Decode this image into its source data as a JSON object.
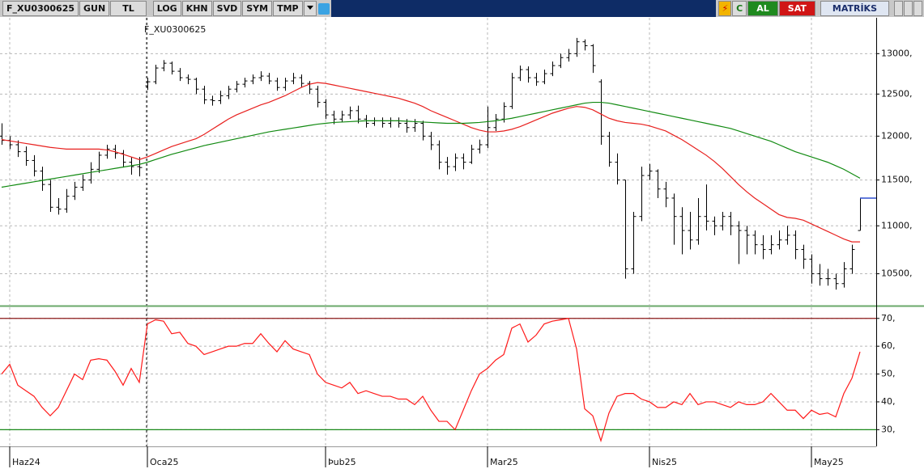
{
  "toolbar": {
    "left": [
      "F_XU0300625",
      "GUN",
      "TL",
      "LOG",
      "KHN",
      "SVD",
      "SYM",
      "TMP"
    ],
    "right": [
      "C",
      "AL",
      "SAT",
      "MATRİKS"
    ]
  },
  "chart_data": [
    {
      "type": "ohlc",
      "log": true,
      "grid": true,
      "ylim": [
        10180,
        13460
      ],
      "yticks": [
        {
          "value": 10500,
          "label": "10500,"
        },
        {
          "value": 11000,
          "label": "11000,"
        },
        {
          "value": 11500,
          "label": "11500,"
        },
        {
          "value": 12000,
          "label": "12000,"
        },
        {
          "value": 12500,
          "label": "12500,"
        },
        {
          "value": 13000,
          "label": "13000,"
        }
      ],
      "last_price_color": "#3050d0",
      "series": [
        {
          "name": "F_XU0300625",
          "color": "#000000",
          "open": [
            12000,
            11950,
            11900,
            11820,
            11720,
            11600,
            11450,
            11200,
            11180,
            11320,
            11420,
            11500,
            11620,
            11780,
            11850,
            11800,
            11700,
            11650,
            12600,
            12650,
            12820,
            12880,
            12780,
            12700,
            12680,
            12560,
            12430,
            12420,
            12480,
            12560,
            12620,
            12660,
            12700,
            12720,
            12660,
            12580,
            12660,
            12700,
            12630,
            12560,
            12400,
            12250,
            12200,
            12250,
            12300,
            12200,
            12150,
            12180,
            12150,
            12180,
            12150,
            12100,
            12150,
            12000,
            11900,
            11700,
            11650,
            11750,
            11700,
            11850,
            11900,
            12100,
            12200,
            12350,
            12700,
            12800,
            12700,
            12650,
            12750,
            12850,
            12950,
            13000,
            13150,
            13100,
            12650,
            12000,
            11700,
            11500,
            10550,
            11100,
            11550,
            11600,
            11400,
            11300,
            11100,
            10950,
            10850,
            11100,
            11050,
            11000,
            11100,
            11000,
            10950,
            10900,
            10800,
            10750,
            10800,
            10850,
            10900,
            10750,
            10650,
            10500,
            10450,
            10450,
            10400,
            10550,
            10950
          ],
          "high": [
            12150,
            12000,
            11950,
            11880,
            11780,
            11650,
            11500,
            11300,
            11400,
            11480,
            11560,
            11700,
            11820,
            11900,
            11900,
            11840,
            11760,
            11760,
            12700,
            12860,
            12920,
            12900,
            12820,
            12740,
            12700,
            12600,
            12480,
            12540,
            12600,
            12660,
            12700,
            12740,
            12780,
            12760,
            12700,
            12700,
            12760,
            12740,
            12660,
            12600,
            12440,
            12300,
            12300,
            12350,
            12360,
            12250,
            12220,
            12220,
            12220,
            12220,
            12200,
            12200,
            12180,
            12050,
            11950,
            11760,
            11800,
            11800,
            11900,
            11960,
            12350,
            12260,
            12400,
            12760,
            12850,
            12840,
            12760,
            12800,
            12900,
            13000,
            13060,
            13200,
            13180,
            13120,
            12680,
            12050,
            11800,
            11500,
            11150,
            11650,
            11680,
            11620,
            11480,
            11350,
            11200,
            11150,
            11300,
            11450,
            11100,
            11150,
            11150,
            11050,
            11000,
            10950,
            10900,
            10900,
            10950,
            11000,
            10950,
            10800,
            10700,
            10600,
            10550,
            10500,
            10620,
            10800,
            11300
          ],
          "low": [
            11900,
            11850,
            11760,
            11660,
            11540,
            11380,
            11150,
            11120,
            11140,
            11280,
            11380,
            11460,
            11580,
            11740,
            11740,
            11640,
            11560,
            11540,
            12550,
            12620,
            12780,
            12740,
            12660,
            12620,
            12500,
            12380,
            12360,
            12380,
            12440,
            12520,
            12580,
            12620,
            12660,
            12620,
            12540,
            12540,
            12620,
            12580,
            12500,
            12340,
            12200,
            12140,
            12160,
            12200,
            12150,
            12100,
            12120,
            12100,
            12100,
            12100,
            12040,
            12050,
            11950,
            11840,
            11620,
            11560,
            11600,
            11620,
            11680,
            11800,
            11860,
            12060,
            12160,
            12320,
            12660,
            12640,
            12600,
            12620,
            12720,
            12820,
            12900,
            12960,
            13040,
            12760,
            11900,
            11650,
            11450,
            10450,
            10500,
            11050,
            11500,
            11300,
            11200,
            10800,
            10700,
            10750,
            10800,
            10950,
            10900,
            10950,
            10900,
            10600,
            10700,
            10700,
            10650,
            10700,
            10750,
            10800,
            10650,
            10550,
            10400,
            10380,
            10380,
            10340,
            10360,
            10500,
            10950
          ],
          "close": [
            11950,
            11900,
            11820,
            11720,
            11600,
            11450,
            11200,
            11180,
            11320,
            11420,
            11500,
            11620,
            11780,
            11850,
            11800,
            11700,
            11650,
            11640,
            12650,
            12820,
            12880,
            12780,
            12700,
            12680,
            12560,
            12430,
            12420,
            12480,
            12560,
            12620,
            12660,
            12700,
            12720,
            12660,
            12580,
            12660,
            12700,
            12630,
            12560,
            12400,
            12250,
            12200,
            12250,
            12300,
            12200,
            12150,
            12180,
            12150,
            12180,
            12150,
            12100,
            12150,
            12000,
            11900,
            11700,
            11650,
            11750,
            11700,
            11850,
            11900,
            12100,
            12200,
            12350,
            12700,
            12800,
            12700,
            12650,
            12750,
            12850,
            12950,
            13000,
            13150,
            13100,
            12850,
            12000,
            11700,
            11500,
            10550,
            11100,
            11550,
            11600,
            11400,
            11300,
            11100,
            10950,
            10850,
            11100,
            11050,
            11000,
            11100,
            11000,
            10950,
            10900,
            10800,
            10750,
            10800,
            10850,
            10900,
            10750,
            10650,
            10500,
            10450,
            10450,
            10400,
            10550,
            10750,
            11300
          ]
        }
      ],
      "overlays": [
        {
          "type": "line",
          "color": "#e8201e",
          "values": [
            11960,
            11945,
            11930,
            11915,
            11900,
            11885,
            11870,
            11860,
            11850,
            11850,
            11850,
            11850,
            11850,
            11840,
            11820,
            11790,
            11760,
            11730,
            11760,
            11800,
            11840,
            11880,
            11910,
            11940,
            11970,
            12020,
            12080,
            12140,
            12200,
            12250,
            12290,
            12330,
            12370,
            12400,
            12440,
            12480,
            12530,
            12580,
            12620,
            12640,
            12630,
            12610,
            12590,
            12570,
            12550,
            12530,
            12510,
            12490,
            12470,
            12450,
            12420,
            12390,
            12350,
            12300,
            12260,
            12220,
            12180,
            12140,
            12100,
            12070,
            12050,
            12050,
            12060,
            12080,
            12110,
            12150,
            12190,
            12230,
            12270,
            12300,
            12330,
            12350,
            12340,
            12310,
            12260,
            12210,
            12180,
            12160,
            12150,
            12140,
            12120,
            12090,
            12060,
            12010,
            11960,
            11900,
            11840,
            11780,
            11710,
            11630,
            11540,
            11450,
            11370,
            11300,
            11240,
            11180,
            11120,
            11090,
            11080,
            11060,
            11020,
            10980,
            10940,
            10900,
            10860,
            10830,
            10830
          ]
        },
        {
          "type": "line",
          "color": "#118a11",
          "values": [
            11420,
            11435,
            11450,
            11465,
            11480,
            11495,
            11510,
            11525,
            11540,
            11555,
            11570,
            11585,
            11600,
            11615,
            11630,
            11645,
            11660,
            11675,
            11700,
            11730,
            11760,
            11790,
            11815,
            11840,
            11865,
            11890,
            11910,
            11930,
            11950,
            11970,
            11990,
            12010,
            12030,
            12050,
            12065,
            12080,
            12095,
            12110,
            12125,
            12140,
            12150,
            12160,
            12165,
            12170,
            12175,
            12180,
            12180,
            12180,
            12180,
            12180,
            12175,
            12170,
            12165,
            12160,
            12155,
            12150,
            12150,
            12150,
            12155,
            12160,
            12170,
            12180,
            12195,
            12210,
            12230,
            12250,
            12270,
            12290,
            12310,
            12330,
            12350,
            12370,
            12390,
            12400,
            12400,
            12390,
            12370,
            12350,
            12330,
            12310,
            12290,
            12270,
            12250,
            12230,
            12210,
            12190,
            12170,
            12150,
            12130,
            12110,
            12090,
            12060,
            12030,
            12000,
            11970,
            11940,
            11900,
            11860,
            11820,
            11790,
            11760,
            11730,
            11700,
            11660,
            11620,
            11570,
            11520
          ]
        }
      ]
    },
    {
      "type": "line",
      "grid": true,
      "ylim": [
        24,
        74
      ],
      "yticks": [
        {
          "value": 30,
          "label": "30,"
        },
        {
          "value": 40,
          "label": "40,"
        },
        {
          "value": 50,
          "label": "50,"
        },
        {
          "value": 60,
          "label": "60,"
        },
        {
          "value": 70,
          "label": "70,"
        }
      ],
      "levels": [
        {
          "value": 70,
          "color": "#8b1a1a"
        },
        {
          "value": 30,
          "color": "#1a8a1a"
        }
      ],
      "categories": [
        null,
        "Haz24",
        null,
        null,
        null,
        null,
        null,
        null,
        null,
        null,
        null,
        null,
        null,
        null,
        null,
        null,
        null,
        null,
        "Oca25",
        null,
        null,
        null,
        null,
        null,
        null,
        null,
        null,
        null,
        null,
        null,
        null,
        null,
        null,
        null,
        null,
        null,
        null,
        null,
        null,
        null,
        "Þub25",
        null,
        null,
        null,
        null,
        null,
        null,
        null,
        null,
        null,
        null,
        null,
        null,
        null,
        null,
        null,
        null,
        null,
        null,
        null,
        "Mar25",
        null,
        null,
        null,
        null,
        null,
        null,
        null,
        null,
        null,
        null,
        null,
        null,
        null,
        null,
        null,
        null,
        null,
        null,
        null,
        "Nis25",
        null,
        null,
        null,
        null,
        null,
        null,
        null,
        null,
        null,
        null,
        null,
        null,
        null,
        null,
        null,
        null,
        null,
        null,
        null,
        "May25",
        null,
        null,
        null,
        null,
        null,
        null
      ],
      "series": [
        {
          "color": "#ff1a1a",
          "values": [
            50,
            53.5,
            46,
            44,
            42,
            38,
            35,
            38,
            44,
            50,
            48,
            55,
            55.5,
            55,
            51,
            46,
            52,
            47,
            68,
            69.5,
            69,
            64.5,
            65,
            61,
            60,
            57,
            58,
            59,
            60,
            60,
            61,
            61,
            64.5,
            61,
            58,
            62,
            59,
            58,
            57,
            50,
            47,
            46,
            45,
            47,
            43,
            44,
            43,
            42,
            42,
            41,
            41,
            39,
            42,
            37,
            33,
            33,
            30,
            37,
            44,
            50,
            52,
            55,
            57,
            66.5,
            68,
            61.5,
            64,
            68,
            69,
            69.5,
            70,
            59,
            37.5,
            35,
            26,
            36,
            42,
            43,
            43,
            41,
            40,
            38,
            38,
            40,
            39,
            43,
            39,
            40,
            40,
            39,
            38,
            40,
            39,
            39,
            40,
            43,
            40,
            37,
            37,
            34,
            37,
            35.5,
            36,
            34.6,
            43,
            48.5,
            58
          ]
        }
      ]
    }
  ]
}
